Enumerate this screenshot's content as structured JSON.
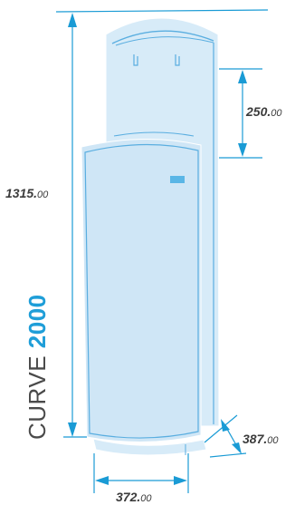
{
  "product": {
    "name_prefix": "CURVE",
    "name_model": "2000"
  },
  "dimensions": {
    "height": {
      "major": "1315.",
      "minor": "00"
    },
    "top_section": {
      "major": "250.",
      "minor": "00"
    },
    "width": {
      "major": "372.",
      "minor": "00"
    },
    "depth": {
      "major": "387.",
      "minor": "00"
    }
  },
  "colors": {
    "body_fill": "#d7ebf8",
    "outline": "#5aaee0",
    "dimension_line": "#1a9bd5",
    "label_text": "#3c3c3c",
    "accent": "#1f9ed8"
  }
}
